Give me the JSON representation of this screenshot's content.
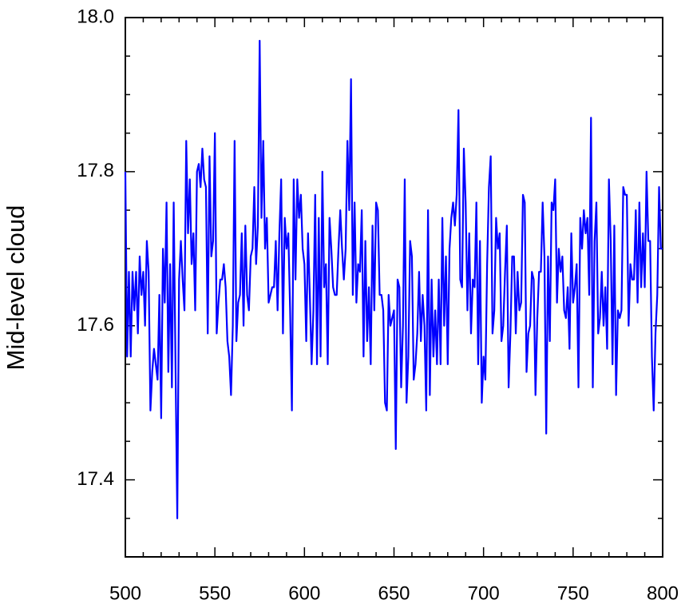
{
  "chart_data": {
    "type": "line",
    "y_label": "Mid-level cloud",
    "x": [
      500,
      501,
      502,
      503,
      504,
      505,
      506,
      507,
      508,
      509,
      510,
      511,
      512,
      513,
      514,
      515,
      516,
      517,
      518,
      519,
      520,
      521,
      522,
      523,
      524,
      525,
      526,
      527,
      528,
      529,
      530,
      531,
      532,
      533,
      534,
      535,
      536,
      537,
      538,
      539,
      540,
      541,
      542,
      543,
      544,
      545,
      546,
      547,
      548,
      549,
      550,
      551,
      552,
      553,
      554,
      555,
      556,
      557,
      558,
      559,
      560,
      561,
      562,
      563,
      564,
      565,
      566,
      567,
      568,
      569,
      570,
      571,
      572,
      573,
      574,
      575,
      576,
      577,
      578,
      579,
      580,
      581,
      582,
      583,
      584,
      585,
      586,
      587,
      588,
      589,
      590,
      591,
      592,
      593,
      594,
      595,
      596,
      597,
      598,
      599,
      600,
      601,
      602,
      603,
      604,
      605,
      606,
      607,
      608,
      609,
      610,
      611,
      612,
      613,
      614,
      615,
      616,
      617,
      618,
      619,
      620,
      621,
      622,
      623,
      624,
      625,
      626,
      627,
      628,
      629,
      630,
      631,
      632,
      633,
      634,
      635,
      636,
      637,
      638,
      639,
      640,
      641,
      642,
      643,
      644,
      645,
      646,
      647,
      648,
      649,
      650,
      651,
      652,
      653,
      654,
      655,
      656,
      657,
      658,
      659,
      660,
      661,
      662,
      663,
      664,
      665,
      666,
      667,
      668,
      669,
      670,
      671,
      672,
      673,
      674,
      675,
      676,
      677,
      678,
      679,
      680,
      681,
      682,
      683,
      684,
      685,
      686,
      687,
      688,
      689,
      690,
      691,
      692,
      693,
      694,
      695,
      696,
      697,
      698,
      699,
      700,
      701,
      702,
      703,
      704,
      705,
      706,
      707,
      708,
      709,
      710,
      711,
      712,
      713,
      714,
      715,
      716,
      717,
      718,
      719,
      720,
      721,
      722,
      723,
      724,
      725,
      726,
      727,
      728,
      729,
      730,
      731,
      732,
      733,
      734,
      735,
      736,
      737,
      738,
      739,
      740,
      741,
      742,
      743,
      744,
      745,
      746,
      747,
      748,
      749,
      750,
      751,
      752,
      753,
      754,
      755,
      756,
      757,
      758,
      759,
      760,
      761,
      762,
      763,
      764,
      765,
      766,
      767,
      768,
      769,
      770,
      771,
      772,
      773,
      774,
      775,
      776,
      777,
      778,
      779,
      780,
      781,
      782,
      783,
      784,
      785,
      786,
      787,
      788,
      789,
      790,
      791,
      792,
      793,
      794,
      795,
      796,
      797,
      798,
      799,
      800
    ],
    "series": [
      {
        "color": "#0000ff",
        "values": [
          17.8,
          17.56,
          17.67,
          17.56,
          17.67,
          17.62,
          17.67,
          17.59,
          17.69,
          17.64,
          17.67,
          17.6,
          17.71,
          17.67,
          17.49,
          17.54,
          17.57,
          17.55,
          17.53,
          17.64,
          17.48,
          17.7,
          17.63,
          17.76,
          17.54,
          17.68,
          17.52,
          17.76,
          17.55,
          17.35,
          17.66,
          17.71,
          17.66,
          17.62,
          17.84,
          17.72,
          17.79,
          17.68,
          17.72,
          17.62,
          17.8,
          17.81,
          17.78,
          17.83,
          17.79,
          17.78,
          17.59,
          17.82,
          17.69,
          17.71,
          17.85,
          17.59,
          17.63,
          17.66,
          17.66,
          17.68,
          17.65,
          17.58,
          17.56,
          17.51,
          17.6,
          17.84,
          17.58,
          17.63,
          17.64,
          17.72,
          17.6,
          17.73,
          17.64,
          17.62,
          17.69,
          17.7,
          17.78,
          17.68,
          17.73,
          17.97,
          17.74,
          17.84,
          17.7,
          17.74,
          17.63,
          17.64,
          17.65,
          17.65,
          17.71,
          17.62,
          17.72,
          17.79,
          17.59,
          17.74,
          17.7,
          17.72,
          17.62,
          17.49,
          17.79,
          17.66,
          17.79,
          17.74,
          17.77,
          17.7,
          17.68,
          17.58,
          17.72,
          17.64,
          17.55,
          17.62,
          17.77,
          17.55,
          17.74,
          17.56,
          17.8,
          17.65,
          17.68,
          17.55,
          17.74,
          17.7,
          17.65,
          17.64,
          17.64,
          17.7,
          17.75,
          17.7,
          17.66,
          17.7,
          17.84,
          17.75,
          17.92,
          17.64,
          17.76,
          17.63,
          17.68,
          17.67,
          17.75,
          17.56,
          17.71,
          17.58,
          17.65,
          17.55,
          17.73,
          17.62,
          17.76,
          17.75,
          17.64,
          17.64,
          17.62,
          17.5,
          17.49,
          17.64,
          17.6,
          17.61,
          17.62,
          17.44,
          17.66,
          17.65,
          17.52,
          17.6,
          17.79,
          17.5,
          17.56,
          17.71,
          17.69,
          17.53,
          17.55,
          17.59,
          17.67,
          17.58,
          17.64,
          17.6,
          17.49,
          17.75,
          17.51,
          17.66,
          17.56,
          17.62,
          17.55,
          17.66,
          17.55,
          17.74,
          17.6,
          17.69,
          17.55,
          17.7,
          17.74,
          17.76,
          17.73,
          17.77,
          17.88,
          17.66,
          17.65,
          17.83,
          17.76,
          17.62,
          17.72,
          17.59,
          17.66,
          17.65,
          17.76,
          17.55,
          17.71,
          17.5,
          17.56,
          17.53,
          17.68,
          17.78,
          17.82,
          17.59,
          17.62,
          17.74,
          17.7,
          17.72,
          17.58,
          17.6,
          17.67,
          17.73,
          17.52,
          17.59,
          17.69,
          17.69,
          17.59,
          17.67,
          17.62,
          17.63,
          17.77,
          17.76,
          17.54,
          17.59,
          17.6,
          17.67,
          17.66,
          17.51,
          17.61,
          17.67,
          17.67,
          17.76,
          17.69,
          17.46,
          17.69,
          17.58,
          17.76,
          17.75,
          17.79,
          17.63,
          17.7,
          17.67,
          17.69,
          17.62,
          17.61,
          17.65,
          17.57,
          17.72,
          17.63,
          17.65,
          17.68,
          17.52,
          17.74,
          17.7,
          17.75,
          17.72,
          17.74,
          17.64,
          17.87,
          17.52,
          17.71,
          17.76,
          17.59,
          17.61,
          17.67,
          17.6,
          17.65,
          17.57,
          17.79,
          17.71,
          17.55,
          17.73,
          17.51,
          17.62,
          17.61,
          17.62,
          17.78,
          17.77,
          17.77,
          17.6,
          17.68,
          17.66,
          17.66,
          17.75,
          17.63,
          17.76,
          17.65,
          17.72,
          17.65,
          17.8,
          17.71,
          17.71,
          17.56,
          17.49,
          17.59,
          17.64,
          17.78,
          17.7,
          17.7
        ]
      }
    ],
    "xlim": [
      500,
      800
    ],
    "xticks": [
      500,
      550,
      600,
      650,
      700,
      750,
      800
    ],
    "xminorticks": [
      510,
      520,
      530,
      540,
      560,
      570,
      580,
      590,
      610,
      620,
      630,
      640,
      660,
      670,
      680,
      690,
      710,
      720,
      730,
      740,
      760,
      770,
      780,
      790
    ],
    "ylim": [
      17.3,
      18.0
    ],
    "yticks": [
      17.4,
      17.6,
      17.8,
      {
        "value": 18,
        "label": "18.0"
      }
    ],
    "yminorticks": [
      17.35,
      17.45,
      17.5,
      17.55,
      17.65,
      17.7,
      17.75,
      17.85,
      17.9,
      17.95
    ]
  }
}
